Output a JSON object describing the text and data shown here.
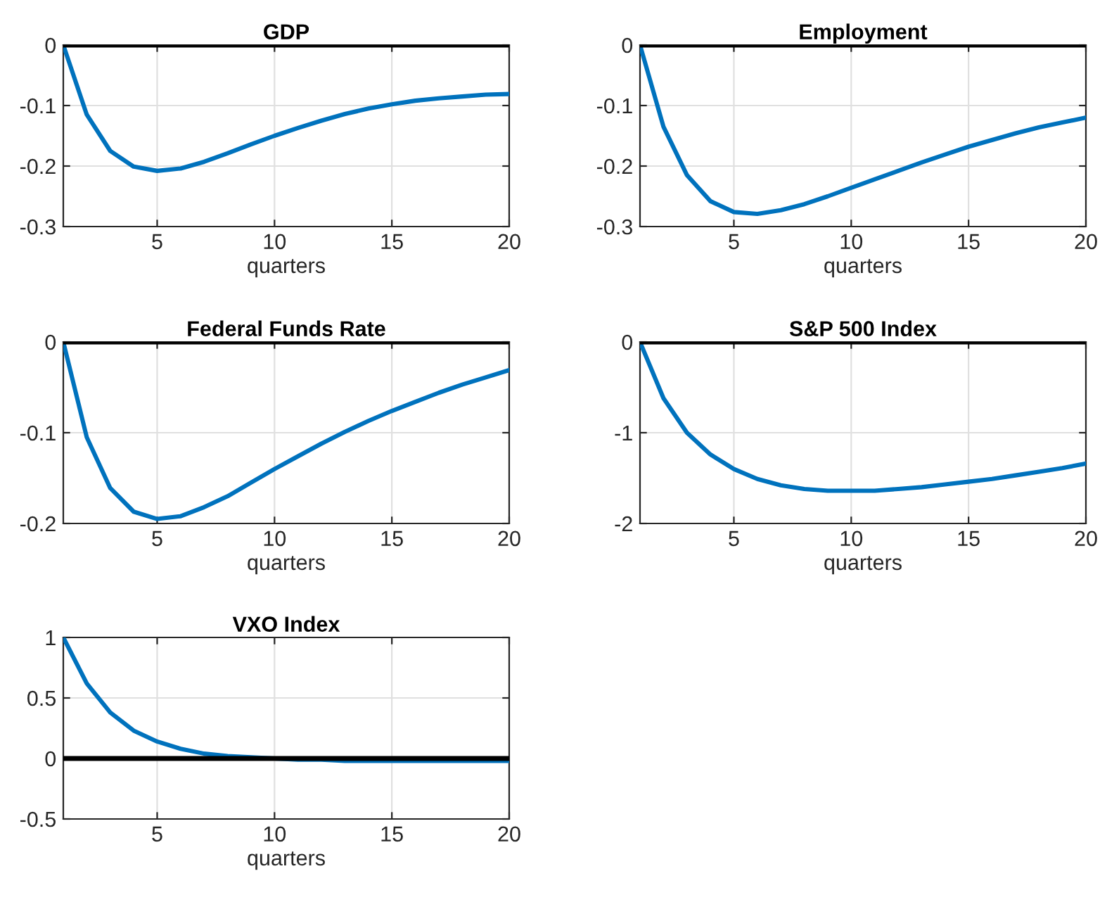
{
  "chart_data": [
    {
      "type": "line",
      "title": "GDP",
      "xlabel": "quarters",
      "x": [
        1,
        2,
        3,
        4,
        5,
        6,
        7,
        8,
        9,
        10,
        11,
        12,
        13,
        14,
        15,
        16,
        17,
        18,
        19,
        20
      ],
      "series": [
        {
          "color": "#0072bd",
          "values": [
            0,
            -0.115,
            -0.175,
            -0.201,
            -0.208,
            -0.204,
            -0.193,
            -0.179,
            -0.164,
            -0.15,
            -0.137,
            -0.125,
            -0.114,
            -0.105,
            -0.098,
            -0.092,
            -0.088,
            -0.085,
            -0.082,
            -0.081
          ]
        }
      ],
      "xlim": [
        1,
        20
      ],
      "xticks": [
        5,
        10,
        15,
        20
      ],
      "ylim": [
        -0.3,
        0
      ],
      "yticks": [
        -0.3,
        -0.2,
        -0.1,
        0
      ],
      "ref_lines": [
        {
          "axis": "y",
          "value": 0,
          "color": "#000000"
        }
      ],
      "grid": true,
      "legend": false
    },
    {
      "type": "line",
      "title": "Employment",
      "xlabel": "quarters",
      "x": [
        1,
        2,
        3,
        4,
        5,
        6,
        7,
        8,
        9,
        10,
        11,
        12,
        13,
        14,
        15,
        16,
        17,
        18,
        19,
        20
      ],
      "series": [
        {
          "color": "#0072bd",
          "values": [
            0,
            -0.135,
            -0.215,
            -0.258,
            -0.276,
            -0.279,
            -0.273,
            -0.263,
            -0.25,
            -0.236,
            -0.222,
            -0.208,
            -0.194,
            -0.181,
            -0.168,
            -0.157,
            -0.146,
            -0.136,
            -0.128,
            -0.12
          ]
        }
      ],
      "xlim": [
        1,
        20
      ],
      "xticks": [
        5,
        10,
        15,
        20
      ],
      "ylim": [
        -0.3,
        0
      ],
      "yticks": [
        -0.3,
        -0.2,
        -0.1,
        0
      ],
      "ref_lines": [
        {
          "axis": "y",
          "value": 0,
          "color": "#000000"
        }
      ],
      "grid": true,
      "legend": false
    },
    {
      "type": "line",
      "title": "Federal Funds Rate",
      "xlabel": "quarters",
      "x": [
        1,
        2,
        3,
        4,
        5,
        6,
        7,
        8,
        9,
        10,
        11,
        12,
        13,
        14,
        15,
        16,
        17,
        18,
        19,
        20
      ],
      "series": [
        {
          "color": "#0072bd",
          "values": [
            0,
            -0.105,
            -0.161,
            -0.187,
            -0.195,
            -0.192,
            -0.182,
            -0.17,
            -0.155,
            -0.14,
            -0.126,
            -0.112,
            -0.099,
            -0.087,
            -0.076,
            -0.066,
            -0.056,
            -0.047,
            -0.039,
            -0.031
          ]
        }
      ],
      "xlim": [
        1,
        20
      ],
      "xticks": [
        5,
        10,
        15,
        20
      ],
      "ylim": [
        -0.2,
        0
      ],
      "yticks": [
        -0.2,
        -0.1,
        0
      ],
      "ref_lines": [
        {
          "axis": "y",
          "value": 0,
          "color": "#000000"
        }
      ],
      "grid": true,
      "legend": false
    },
    {
      "type": "line",
      "title": "S&P 500 Index",
      "xlabel": "quarters",
      "x": [
        1,
        2,
        3,
        4,
        5,
        6,
        7,
        8,
        9,
        10,
        11,
        12,
        13,
        14,
        15,
        16,
        17,
        18,
        19,
        20
      ],
      "series": [
        {
          "color": "#0072bd",
          "values": [
            0,
            -0.62,
            -1.0,
            -1.24,
            -1.4,
            -1.51,
            -1.58,
            -1.62,
            -1.64,
            -1.64,
            -1.64,
            -1.62,
            -1.6,
            -1.57,
            -1.54,
            -1.51,
            -1.47,
            -1.43,
            -1.39,
            -1.34
          ]
        }
      ],
      "xlim": [
        1,
        20
      ],
      "xticks": [
        5,
        10,
        15,
        20
      ],
      "ylim": [
        -2,
        0
      ],
      "yticks": [
        -2,
        -1,
        0
      ],
      "ref_lines": [
        {
          "axis": "y",
          "value": 0,
          "color": "#000000"
        }
      ],
      "grid": true,
      "legend": false
    },
    {
      "type": "line",
      "title": "VXO Index",
      "xlabel": "quarters",
      "x": [
        1,
        2,
        3,
        4,
        5,
        6,
        7,
        8,
        9,
        10,
        11,
        12,
        13,
        14,
        15,
        16,
        17,
        18,
        19,
        20
      ],
      "series": [
        {
          "color": "#0072bd",
          "values": [
            1,
            0.62,
            0.38,
            0.23,
            0.14,
            0.08,
            0.04,
            0.02,
            0.01,
            0,
            -0.01,
            -0.01,
            -0.02,
            -0.02,
            -0.02,
            -0.02,
            -0.02,
            -0.02,
            -0.02,
            -0.02
          ]
        }
      ],
      "xlim": [
        1,
        20
      ],
      "xticks": [
        5,
        10,
        15,
        20
      ],
      "ylim": [
        -0.5,
        1
      ],
      "yticks": [
        -0.5,
        0,
        0.5,
        1
      ],
      "ref_lines": [
        {
          "axis": "y",
          "value": 0,
          "color": "#000000"
        }
      ],
      "grid": true,
      "legend": false
    }
  ]
}
